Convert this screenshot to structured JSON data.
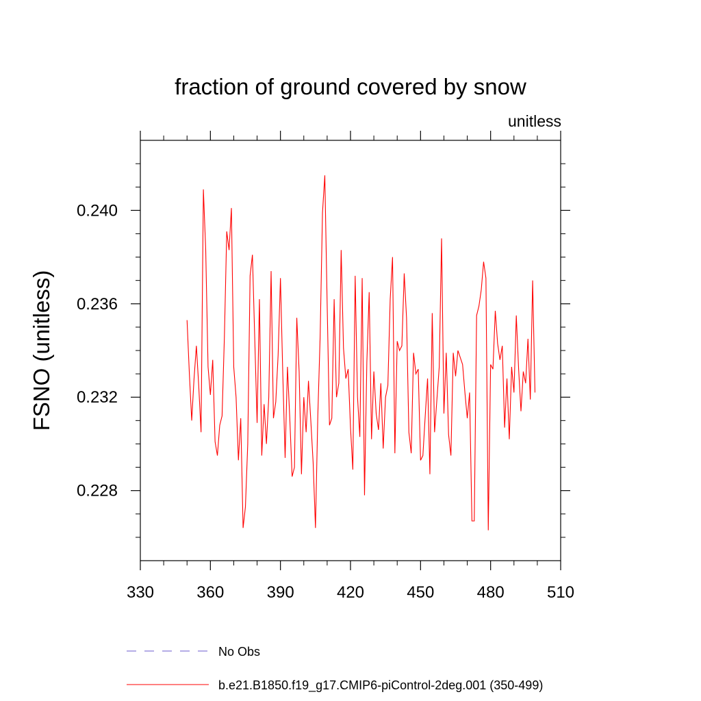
{
  "chart_data": {
    "type": "line",
    "title": "fraction of ground covered by snow",
    "units_label": "unitless",
    "ylabel": "FSNO  (unitless)",
    "xlabel": "",
    "xlim": [
      330,
      510
    ],
    "ylim": [
      0.225,
      0.243
    ],
    "xticks": [
      330,
      360,
      390,
      420,
      450,
      480,
      510
    ],
    "xtick_labels": [
      "330",
      "360",
      "390",
      "420",
      "450",
      "480",
      "510"
    ],
    "yticks": [
      0.228,
      0.232,
      0.236,
      0.24
    ],
    "ytick_labels": [
      "0.228",
      "0.232",
      "0.236",
      "0.240"
    ],
    "grid": false,
    "legend_position": "bottom",
    "series": [
      {
        "name": "No Obs",
        "color": "#6a5acd",
        "style": "dashed",
        "x": [],
        "y": []
      },
      {
        "name": "b.e21.B1850.f19_g17.CMIP6-piControl-2deg.001 (350-499)",
        "color": "#ff0000",
        "style": "solid",
        "x": [
          350,
          351,
          352,
          353,
          354,
          355,
          356,
          357,
          358,
          359,
          360,
          361,
          362,
          363,
          364,
          365,
          366,
          367,
          368,
          369,
          370,
          371,
          372,
          373,
          374,
          375,
          376,
          377,
          378,
          379,
          380,
          381,
          382,
          383,
          384,
          385,
          386,
          387,
          388,
          389,
          390,
          391,
          392,
          393,
          394,
          395,
          396,
          397,
          398,
          399,
          400,
          401,
          402,
          403,
          404,
          405,
          406,
          407,
          408,
          409,
          410,
          411,
          412,
          413,
          414,
          415,
          416,
          417,
          418,
          419,
          420,
          421,
          422,
          423,
          424,
          425,
          426,
          427,
          428,
          429,
          430,
          431,
          432,
          433,
          434,
          435,
          436,
          437,
          438,
          439,
          440,
          441,
          442,
          443,
          444,
          445,
          446,
          447,
          448,
          449,
          450,
          451,
          452,
          453,
          454,
          455,
          456,
          457,
          458,
          459,
          460,
          461,
          462,
          463,
          464,
          465,
          466,
          467,
          468,
          469,
          470,
          471,
          472,
          473,
          474,
          475,
          476,
          477,
          478,
          479,
          480,
          481,
          482,
          483,
          484,
          485,
          486,
          487,
          488,
          489,
          490,
          491,
          492,
          493,
          494,
          495,
          496,
          497,
          498,
          499
        ],
        "y": [
          0.2353,
          0.233,
          0.231,
          0.2328,
          0.2342,
          0.2325,
          0.2305,
          0.2409,
          0.2383,
          0.2333,
          0.2321,
          0.2336,
          0.2301,
          0.2295,
          0.2308,
          0.2312,
          0.2346,
          0.2391,
          0.2383,
          0.2401,
          0.2333,
          0.232,
          0.2293,
          0.2311,
          0.2264,
          0.2273,
          0.23,
          0.2372,
          0.2381,
          0.2345,
          0.2309,
          0.2362,
          0.2295,
          0.2317,
          0.23,
          0.232,
          0.2374,
          0.2311,
          0.2318,
          0.2338,
          0.2371,
          0.233,
          0.2294,
          0.2333,
          0.2311,
          0.2286,
          0.229,
          0.2354,
          0.2331,
          0.2287,
          0.232,
          0.2305,
          0.2327,
          0.231,
          0.2292,
          0.2264,
          0.2312,
          0.2346,
          0.2399,
          0.2415,
          0.236,
          0.2308,
          0.2311,
          0.2362,
          0.232,
          0.2326,
          0.2383,
          0.2341,
          0.2328,
          0.2332,
          0.2307,
          0.2289,
          0.2372,
          0.232,
          0.2303,
          0.2371,
          0.2278,
          0.2335,
          0.2365,
          0.2302,
          0.2331,
          0.2313,
          0.2306,
          0.2326,
          0.2298,
          0.232,
          0.2325,
          0.2362,
          0.238,
          0.2296,
          0.2344,
          0.234,
          0.2342,
          0.2373,
          0.2354,
          0.2305,
          0.2296,
          0.2339,
          0.233,
          0.2332,
          0.2293,
          0.2295,
          0.2312,
          0.2328,
          0.2287,
          0.2356,
          0.2305,
          0.2319,
          0.2333,
          0.2388,
          0.2313,
          0.2339,
          0.2304,
          0.2295,
          0.2339,
          0.2329,
          0.234,
          0.2337,
          0.2334,
          0.2322,
          0.2311,
          0.2322,
          0.2267,
          0.2267,
          0.2355,
          0.2359,
          0.2366,
          0.2378,
          0.2371,
          0.2263,
          0.2334,
          0.2332,
          0.2357,
          0.2343,
          0.2336,
          0.2342,
          0.2307,
          0.2328,
          0.2302,
          0.2333,
          0.2322,
          0.2355,
          0.2332,
          0.2314,
          0.2331,
          0.2326,
          0.2345,
          0.2319,
          0.237,
          0.2322
        ]
      }
    ]
  }
}
